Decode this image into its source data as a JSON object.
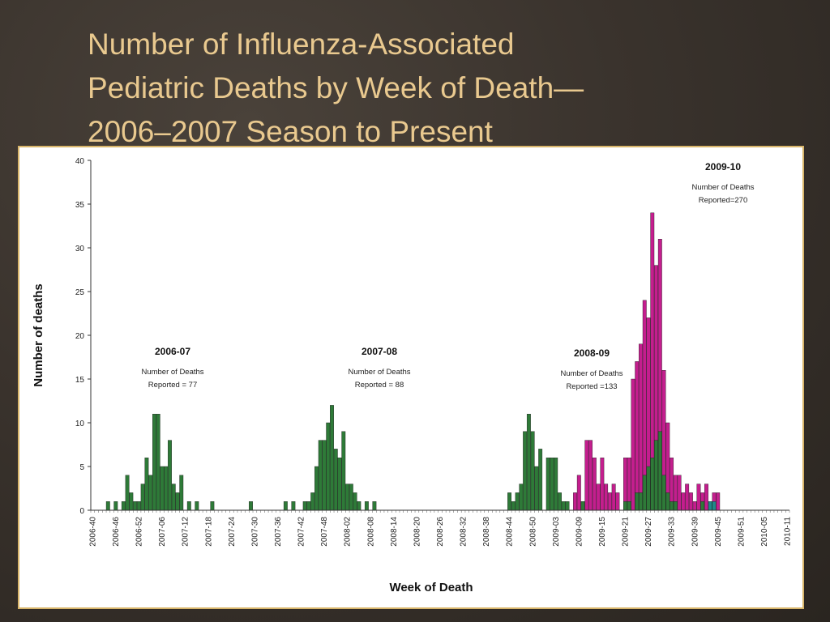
{
  "slide": {
    "title_lines": [
      "Number of Influenza-Associated",
      "Pediatric Deaths by Week of Death—",
      "2006–2007 Season to Present"
    ]
  },
  "chart_data": {
    "type": "bar",
    "xlabel": "Week of Death",
    "ylabel": "Number of deaths",
    "ylim": [
      0,
      40
    ],
    "yticks": [
      0,
      5,
      10,
      15,
      20,
      25,
      30,
      35,
      40
    ],
    "grid": false,
    "start_week": "2006-40",
    "tick_labels": [
      "2006-40",
      "2006-46",
      "2006-52",
      "2007-06",
      "2007-12",
      "2007-18",
      "2007-24",
      "2007-30",
      "2007-36",
      "2007-42",
      "2007-48",
      "2008-02",
      "2008-08",
      "2008-14",
      "2008-20",
      "2008-26",
      "2008-32",
      "2008-38",
      "2008-44",
      "2008-50",
      "2009-03",
      "2009-09",
      "2009-15",
      "2009-21",
      "2009-27",
      "2009-33",
      "2009-39",
      "2009-45",
      "2009-51",
      "2010-05",
      "2010-11"
    ],
    "colors": {
      "green": "#2e7a38",
      "magenta": "#c41e8e",
      "teal": "#1f8a8a"
    },
    "series": [
      {
        "color": "green",
        "points": [
          [
            "2006-44",
            1
          ],
          [
            "2006-45",
            0
          ],
          [
            "2006-46",
            1
          ],
          [
            "2006-48",
            1
          ],
          [
            "2006-49",
            4
          ],
          [
            "2006-50",
            2
          ],
          [
            "2006-51",
            1
          ],
          [
            "2006-52",
            1
          ],
          [
            "2007-01",
            3
          ],
          [
            "2007-02",
            6
          ],
          [
            "2007-03",
            4
          ],
          [
            "2007-04",
            11
          ],
          [
            "2007-05",
            11
          ],
          [
            "2007-06",
            5
          ],
          [
            "2007-07",
            5
          ],
          [
            "2007-08",
            8
          ],
          [
            "2007-09",
            3
          ],
          [
            "2007-10",
            2
          ],
          [
            "2007-11",
            4
          ],
          [
            "2007-13",
            1
          ],
          [
            "2007-15",
            1
          ],
          [
            "2007-19",
            1
          ],
          [
            "2007-29",
            1
          ],
          [
            "2007-38",
            1
          ],
          [
            "2007-40",
            1
          ],
          [
            "2007-43",
            1
          ],
          [
            "2007-44",
            1
          ],
          [
            "2007-45",
            2
          ],
          [
            "2007-46",
            5
          ],
          [
            "2007-47",
            8
          ],
          [
            "2007-48",
            8
          ],
          [
            "2007-49",
            10
          ],
          [
            "2007-50",
            12
          ],
          [
            "2007-51",
            7
          ],
          [
            "2007-52",
            6
          ],
          [
            "2008-01",
            9
          ],
          [
            "2008-02",
            3
          ],
          [
            "2008-03",
            3
          ],
          [
            "2008-04",
            2
          ],
          [
            "2008-05",
            1
          ],
          [
            "2008-07",
            1
          ],
          [
            "2008-09",
            1
          ],
          [
            "2008-44",
            2
          ],
          [
            "2008-45",
            1
          ],
          [
            "2008-46",
            2
          ],
          [
            "2008-47",
            3
          ],
          [
            "2008-48",
            9
          ],
          [
            "2008-49",
            11
          ],
          [
            "2008-50",
            9
          ],
          [
            "2008-51",
            5
          ],
          [
            "2008-52",
            7
          ],
          [
            "2009-01",
            6
          ],
          [
            "2009-02",
            6
          ],
          [
            "2009-03",
            6
          ],
          [
            "2009-04",
            2
          ],
          [
            "2009-05",
            1
          ],
          [
            "2009-06",
            1
          ]
        ]
      },
      {
        "color": "magenta",
        "points": [
          [
            "2009-08",
            2
          ],
          [
            "2009-09",
            4
          ],
          [
            "2009-10",
            1
          ],
          [
            "2009-11",
            8
          ],
          [
            "2009-12",
            8
          ],
          [
            "2009-13",
            6
          ],
          [
            "2009-14",
            3
          ],
          [
            "2009-15",
            6
          ],
          [
            "2009-16",
            3
          ],
          [
            "2009-17",
            2
          ],
          [
            "2009-18",
            3
          ],
          [
            "2009-19",
            2
          ],
          [
            "2009-21",
            6
          ],
          [
            "2009-22",
            6
          ],
          [
            "2009-23",
            15
          ],
          [
            "2009-24",
            17
          ],
          [
            "2009-25",
            19
          ],
          [
            "2009-26",
            24
          ],
          [
            "2009-27",
            22
          ],
          [
            "2009-28",
            34
          ],
          [
            "2009-29",
            28
          ],
          [
            "2009-30",
            31
          ],
          [
            "2009-31",
            16
          ],
          [
            "2009-32",
            10
          ],
          [
            "2009-33",
            6
          ],
          [
            "2009-34",
            4
          ],
          [
            "2009-35",
            4
          ],
          [
            "2009-36",
            2
          ],
          [
            "2009-37",
            3
          ],
          [
            "2009-38",
            2
          ],
          [
            "2009-39",
            1
          ],
          [
            "2009-40",
            3
          ],
          [
            "2009-41",
            2
          ],
          [
            "2009-42",
            3
          ],
          [
            "2009-43",
            1
          ],
          [
            "2009-44",
            2
          ],
          [
            "2009-45",
            2
          ]
        ]
      },
      {
        "color": "green",
        "points": [
          [
            "2009-10",
            1
          ],
          [
            "2009-21",
            1
          ],
          [
            "2009-22",
            1
          ],
          [
            "2009-24",
            2
          ],
          [
            "2009-25",
            2
          ],
          [
            "2009-26",
            4
          ],
          [
            "2009-27",
            5
          ],
          [
            "2009-28",
            6
          ],
          [
            "2009-29",
            8
          ],
          [
            "2009-30",
            9
          ],
          [
            "2009-31",
            4
          ],
          [
            "2009-32",
            2
          ],
          [
            "2009-33",
            1
          ],
          [
            "2009-34",
            1
          ],
          [
            "2009-41",
            1
          ]
        ]
      },
      {
        "color": "teal",
        "points": [
          [
            "2009-43",
            1
          ],
          [
            "2009-44",
            1
          ]
        ]
      }
    ],
    "annotations": [
      {
        "title": "2006-07",
        "line1": "Number of Deaths",
        "line2": "Reported = 77"
      },
      {
        "title": "2007-08",
        "line1": "Number of Deaths",
        "line2": "Reported = 88"
      },
      {
        "title": "2008-09",
        "line1": "Number of Deaths",
        "line2": "Reported =133"
      },
      {
        "title": "2009-10",
        "line1": "Number of Deaths",
        "line2": "Reported=270"
      }
    ]
  }
}
